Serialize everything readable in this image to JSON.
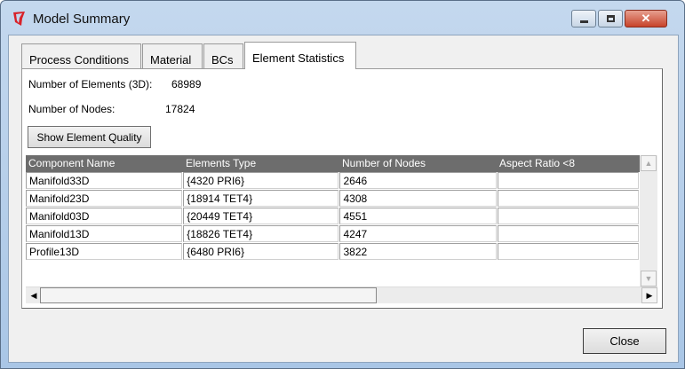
{
  "window": {
    "title": "Model Summary",
    "icon": "app-logo-icon"
  },
  "tabs": [
    {
      "label": "Process Conditions"
    },
    {
      "label": "Material"
    },
    {
      "label": "BCs"
    },
    {
      "label": "Element Statistics",
      "active": true
    }
  ],
  "stats": {
    "elements_label": "Number of Elements (3D):",
    "elements_value": "68989",
    "nodes_label": "Number of Nodes:",
    "nodes_value": "17824"
  },
  "show_quality_label": "Show Element Quality",
  "table": {
    "headers": [
      "Component Name",
      "Elements Type",
      "Number of Nodes",
      "Aspect Ratio <8"
    ],
    "rows": [
      [
        "Manifold33D",
        "{4320 PRI6}",
        "2646",
        ""
      ],
      [
        "Manifold23D",
        "{18914 TET4}",
        "4308",
        ""
      ],
      [
        "Manifold03D",
        "{20449 TET4}",
        "4551",
        ""
      ],
      [
        "Manifold13D",
        "{18826 TET4}",
        "4247",
        ""
      ],
      [
        "Profile13D",
        "{6480 PRI6}",
        "3822",
        ""
      ]
    ]
  },
  "close_label": "Close",
  "colors": {
    "header_bg": "#6d6d6d",
    "close_caption": "#c7432a"
  }
}
